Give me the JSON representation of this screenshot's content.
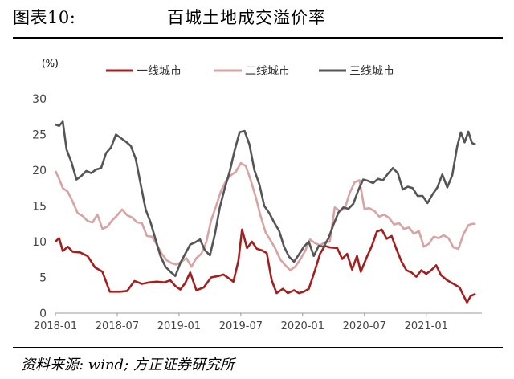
{
  "figure": {
    "number": "图表10:",
    "title": "百城土地成交溢价率",
    "source": "资料来源: wind; 方正证券研究所"
  },
  "chart_data": {
    "type": "line",
    "ylabel": "(%)",
    "ylim": [
      0,
      30
    ],
    "yticks": [
      0,
      5,
      10,
      15,
      20,
      25,
      30
    ],
    "xticks": [
      "2018-01",
      "2018-07",
      "2019-01",
      "2019-07",
      "2020-01",
      "2020-07",
      "2021-01"
    ],
    "grid": false,
    "legend": "top",
    "series": [
      {
        "name": "一线城市",
        "color": "#a31f1f",
        "points": [
          [
            2018.0,
            10.0
          ],
          [
            2018.03,
            10.5
          ],
          [
            2018.06,
            8.7
          ],
          [
            2018.1,
            9.3
          ],
          [
            2018.14,
            8.6
          ],
          [
            2018.2,
            8.5
          ],
          [
            2018.26,
            8.0
          ],
          [
            2018.32,
            6.4
          ],
          [
            2018.38,
            5.8
          ],
          [
            2018.44,
            3.0
          ],
          [
            2018.52,
            3.0
          ],
          [
            2018.58,
            3.1
          ],
          [
            2018.64,
            4.5
          ],
          [
            2018.7,
            4.1
          ],
          [
            2018.76,
            4.3
          ],
          [
            2018.82,
            4.4
          ],
          [
            2018.88,
            4.3
          ],
          [
            2018.93,
            4.6
          ],
          [
            2018.97,
            3.8
          ],
          [
            2019.01,
            3.3
          ],
          [
            2019.05,
            4.2
          ],
          [
            2019.09,
            5.7
          ],
          [
            2019.14,
            3.2
          ],
          [
            2019.2,
            3.6
          ],
          [
            2019.26,
            5.0
          ],
          [
            2019.32,
            5.2
          ],
          [
            2019.36,
            5.4
          ],
          [
            2019.41,
            4.8
          ],
          [
            2019.44,
            4.4
          ],
          [
            2019.48,
            7.3
          ],
          [
            2019.51,
            11.7
          ],
          [
            2019.55,
            9.1
          ],
          [
            2019.59,
            10.0
          ],
          [
            2019.63,
            9.0
          ],
          [
            2019.67,
            8.8
          ],
          [
            2019.71,
            8.4
          ],
          [
            2019.75,
            4.6
          ],
          [
            2019.79,
            2.8
          ],
          [
            2019.84,
            3.4
          ],
          [
            2019.88,
            2.8
          ],
          [
            2019.93,
            3.2
          ],
          [
            2019.97,
            2.8
          ],
          [
            2020.01,
            3.0
          ],
          [
            2020.05,
            3.4
          ],
          [
            2020.1,
            6.0
          ],
          [
            2020.14,
            8.3
          ],
          [
            2020.18,
            9.4
          ],
          [
            2020.22,
            9.2
          ],
          [
            2020.28,
            9.1
          ],
          [
            2020.32,
            7.6
          ],
          [
            2020.36,
            8.3
          ],
          [
            2020.4,
            6.1
          ],
          [
            2020.44,
            8.0
          ],
          [
            2020.47,
            5.8
          ],
          [
            2020.52,
            7.9
          ],
          [
            2020.56,
            9.4
          ],
          [
            2020.6,
            11.4
          ],
          [
            2020.64,
            11.7
          ],
          [
            2020.68,
            10.4
          ],
          [
            2020.72,
            10.8
          ],
          [
            2020.76,
            8.9
          ],
          [
            2020.8,
            7.2
          ],
          [
            2020.84,
            6.0
          ],
          [
            2020.88,
            5.7
          ],
          [
            2020.92,
            5.1
          ],
          [
            2020.96,
            6.0
          ],
          [
            2021.0,
            5.5
          ],
          [
            2021.04,
            6.0
          ],
          [
            2021.08,
            6.7
          ],
          [
            2021.12,
            5.3
          ],
          [
            2021.17,
            4.6
          ],
          [
            2021.22,
            4.1
          ],
          [
            2021.27,
            3.6
          ],
          [
            2021.3,
            2.5
          ],
          [
            2021.33,
            1.5
          ],
          [
            2021.36,
            2.4
          ],
          [
            2021.4,
            2.7
          ]
        ]
      },
      {
        "name": "二线城市",
        "color": "#d7a3a3",
        "points": [
          [
            2018.0,
            19.9
          ],
          [
            2018.03,
            18.8
          ],
          [
            2018.06,
            17.5
          ],
          [
            2018.1,
            17.0
          ],
          [
            2018.14,
            15.6
          ],
          [
            2018.18,
            14.0
          ],
          [
            2018.22,
            13.6
          ],
          [
            2018.26,
            12.9
          ],
          [
            2018.3,
            12.7
          ],
          [
            2018.34,
            13.8
          ],
          [
            2018.38,
            11.8
          ],
          [
            2018.42,
            12.1
          ],
          [
            2018.46,
            13.0
          ],
          [
            2018.5,
            13.7
          ],
          [
            2018.54,
            14.5
          ],
          [
            2018.58,
            13.7
          ],
          [
            2018.62,
            13.4
          ],
          [
            2018.66,
            12.7
          ],
          [
            2018.7,
            12.6
          ],
          [
            2018.74,
            10.8
          ],
          [
            2018.78,
            10.7
          ],
          [
            2018.82,
            9.6
          ],
          [
            2018.86,
            8.3
          ],
          [
            2018.9,
            7.4
          ],
          [
            2018.94,
            7.0
          ],
          [
            2018.98,
            6.8
          ],
          [
            2019.02,
            7.2
          ],
          [
            2019.06,
            7.7
          ],
          [
            2019.1,
            6.5
          ],
          [
            2019.14,
            7.7
          ],
          [
            2019.18,
            8.3
          ],
          [
            2019.22,
            9.9
          ],
          [
            2019.26,
            13.0
          ],
          [
            2019.3,
            15.0
          ],
          [
            2019.34,
            17.1
          ],
          [
            2019.38,
            18.5
          ],
          [
            2019.42,
            19.3
          ],
          [
            2019.46,
            19.8
          ],
          [
            2019.5,
            21.0
          ],
          [
            2019.54,
            20.6
          ],
          [
            2019.58,
            18.6
          ],
          [
            2019.62,
            16.3
          ],
          [
            2019.66,
            13.6
          ],
          [
            2019.7,
            11.3
          ],
          [
            2019.74,
            10.2
          ],
          [
            2019.78,
            9.0
          ],
          [
            2019.82,
            7.5
          ],
          [
            2019.86,
            6.7
          ],
          [
            2019.9,
            6.0
          ],
          [
            2019.94,
            6.5
          ],
          [
            2019.98,
            7.5
          ],
          [
            2020.02,
            8.7
          ],
          [
            2020.06,
            10.3
          ],
          [
            2020.1,
            9.8
          ],
          [
            2020.14,
            9.5
          ],
          [
            2020.18,
            9.9
          ],
          [
            2020.22,
            10.0
          ],
          [
            2020.26,
            14.8
          ],
          [
            2020.3,
            14.3
          ],
          [
            2020.34,
            14.6
          ],
          [
            2020.38,
            16.8
          ],
          [
            2020.42,
            18.3
          ],
          [
            2020.46,
            18.6
          ],
          [
            2020.5,
            14.6
          ],
          [
            2020.54,
            14.7
          ],
          [
            2020.58,
            14.3
          ],
          [
            2020.62,
            13.5
          ],
          [
            2020.66,
            13.8
          ],
          [
            2020.7,
            13.3
          ],
          [
            2020.74,
            12.4
          ],
          [
            2020.78,
            12.6
          ],
          [
            2020.82,
            11.8
          ],
          [
            2020.86,
            12.0
          ],
          [
            2020.9,
            11.1
          ],
          [
            2020.94,
            11.5
          ],
          [
            2020.98,
            9.3
          ],
          [
            2021.02,
            9.7
          ],
          [
            2021.06,
            10.7
          ],
          [
            2021.1,
            10.5
          ],
          [
            2021.14,
            10.9
          ],
          [
            2021.18,
            10.5
          ],
          [
            2021.22,
            9.2
          ],
          [
            2021.26,
            9.0
          ],
          [
            2021.3,
            11.0
          ],
          [
            2021.34,
            12.3
          ],
          [
            2021.37,
            12.5
          ],
          [
            2021.4,
            12.5
          ]
        ]
      },
      {
        "name": "三线城市",
        "color": "#555555",
        "points": [
          [
            2018.0,
            26.4
          ],
          [
            2018.03,
            26.2
          ],
          [
            2018.06,
            26.8
          ],
          [
            2018.09,
            22.9
          ],
          [
            2018.13,
            21.1
          ],
          [
            2018.17,
            18.7
          ],
          [
            2018.21,
            19.2
          ],
          [
            2018.25,
            19.9
          ],
          [
            2018.29,
            19.6
          ],
          [
            2018.33,
            20.1
          ],
          [
            2018.37,
            20.3
          ],
          [
            2018.41,
            22.4
          ],
          [
            2018.45,
            23.2
          ],
          [
            2018.49,
            25.0
          ],
          [
            2018.53,
            24.5
          ],
          [
            2018.57,
            24.0
          ],
          [
            2018.61,
            23.4
          ],
          [
            2018.65,
            21.6
          ],
          [
            2018.69,
            18.0
          ],
          [
            2018.73,
            14.5
          ],
          [
            2018.77,
            12.7
          ],
          [
            2018.81,
            10.3
          ],
          [
            2018.85,
            8.0
          ],
          [
            2018.89,
            6.5
          ],
          [
            2018.93,
            5.8
          ],
          [
            2018.97,
            5.2
          ],
          [
            2019.01,
            7.0
          ],
          [
            2019.05,
            8.3
          ],
          [
            2019.09,
            9.6
          ],
          [
            2019.13,
            9.9
          ],
          [
            2019.17,
            10.3
          ],
          [
            2019.21,
            8.8
          ],
          [
            2019.25,
            8.1
          ],
          [
            2019.29,
            11.0
          ],
          [
            2019.33,
            14.8
          ],
          [
            2019.37,
            17.5
          ],
          [
            2019.41,
            19.8
          ],
          [
            2019.45,
            22.8
          ],
          [
            2019.49,
            25.3
          ],
          [
            2019.53,
            25.5
          ],
          [
            2019.57,
            23.6
          ],
          [
            2019.61,
            20.0
          ],
          [
            2019.65,
            18.0
          ],
          [
            2019.69,
            15.0
          ],
          [
            2019.73,
            14.0
          ],
          [
            2019.77,
            12.7
          ],
          [
            2019.81,
            11.5
          ],
          [
            2019.85,
            9.3
          ],
          [
            2019.89,
            7.9
          ],
          [
            2019.93,
            7.2
          ],
          [
            2019.97,
            8.2
          ],
          [
            2020.01,
            9.3
          ],
          [
            2020.05,
            10.0
          ],
          [
            2020.09,
            8.0
          ],
          [
            2020.13,
            9.4
          ],
          [
            2020.17,
            9.3
          ],
          [
            2020.21,
            10.5
          ],
          [
            2020.25,
            12.4
          ],
          [
            2020.29,
            14.1
          ],
          [
            2020.33,
            14.8
          ],
          [
            2020.37,
            14.6
          ],
          [
            2020.41,
            15.3
          ],
          [
            2020.45,
            17.2
          ],
          [
            2020.49,
            18.7
          ],
          [
            2020.53,
            18.5
          ],
          [
            2020.57,
            18.2
          ],
          [
            2020.61,
            18.8
          ],
          [
            2020.65,
            18.6
          ],
          [
            2020.69,
            19.5
          ],
          [
            2020.73,
            20.3
          ],
          [
            2020.77,
            19.6
          ],
          [
            2020.81,
            17.3
          ],
          [
            2020.85,
            17.7
          ],
          [
            2020.89,
            17.5
          ],
          [
            2020.93,
            16.4
          ],
          [
            2020.97,
            16.4
          ],
          [
            2021.01,
            15.4
          ],
          [
            2021.05,
            16.6
          ],
          [
            2021.09,
            17.6
          ],
          [
            2021.13,
            19.4
          ],
          [
            2021.17,
            17.6
          ],
          [
            2021.21,
            19.3
          ],
          [
            2021.25,
            23.3
          ],
          [
            2021.28,
            25.3
          ],
          [
            2021.31,
            23.9
          ],
          [
            2021.34,
            25.4
          ],
          [
            2021.37,
            23.8
          ],
          [
            2021.4,
            23.6
          ]
        ]
      }
    ]
  }
}
